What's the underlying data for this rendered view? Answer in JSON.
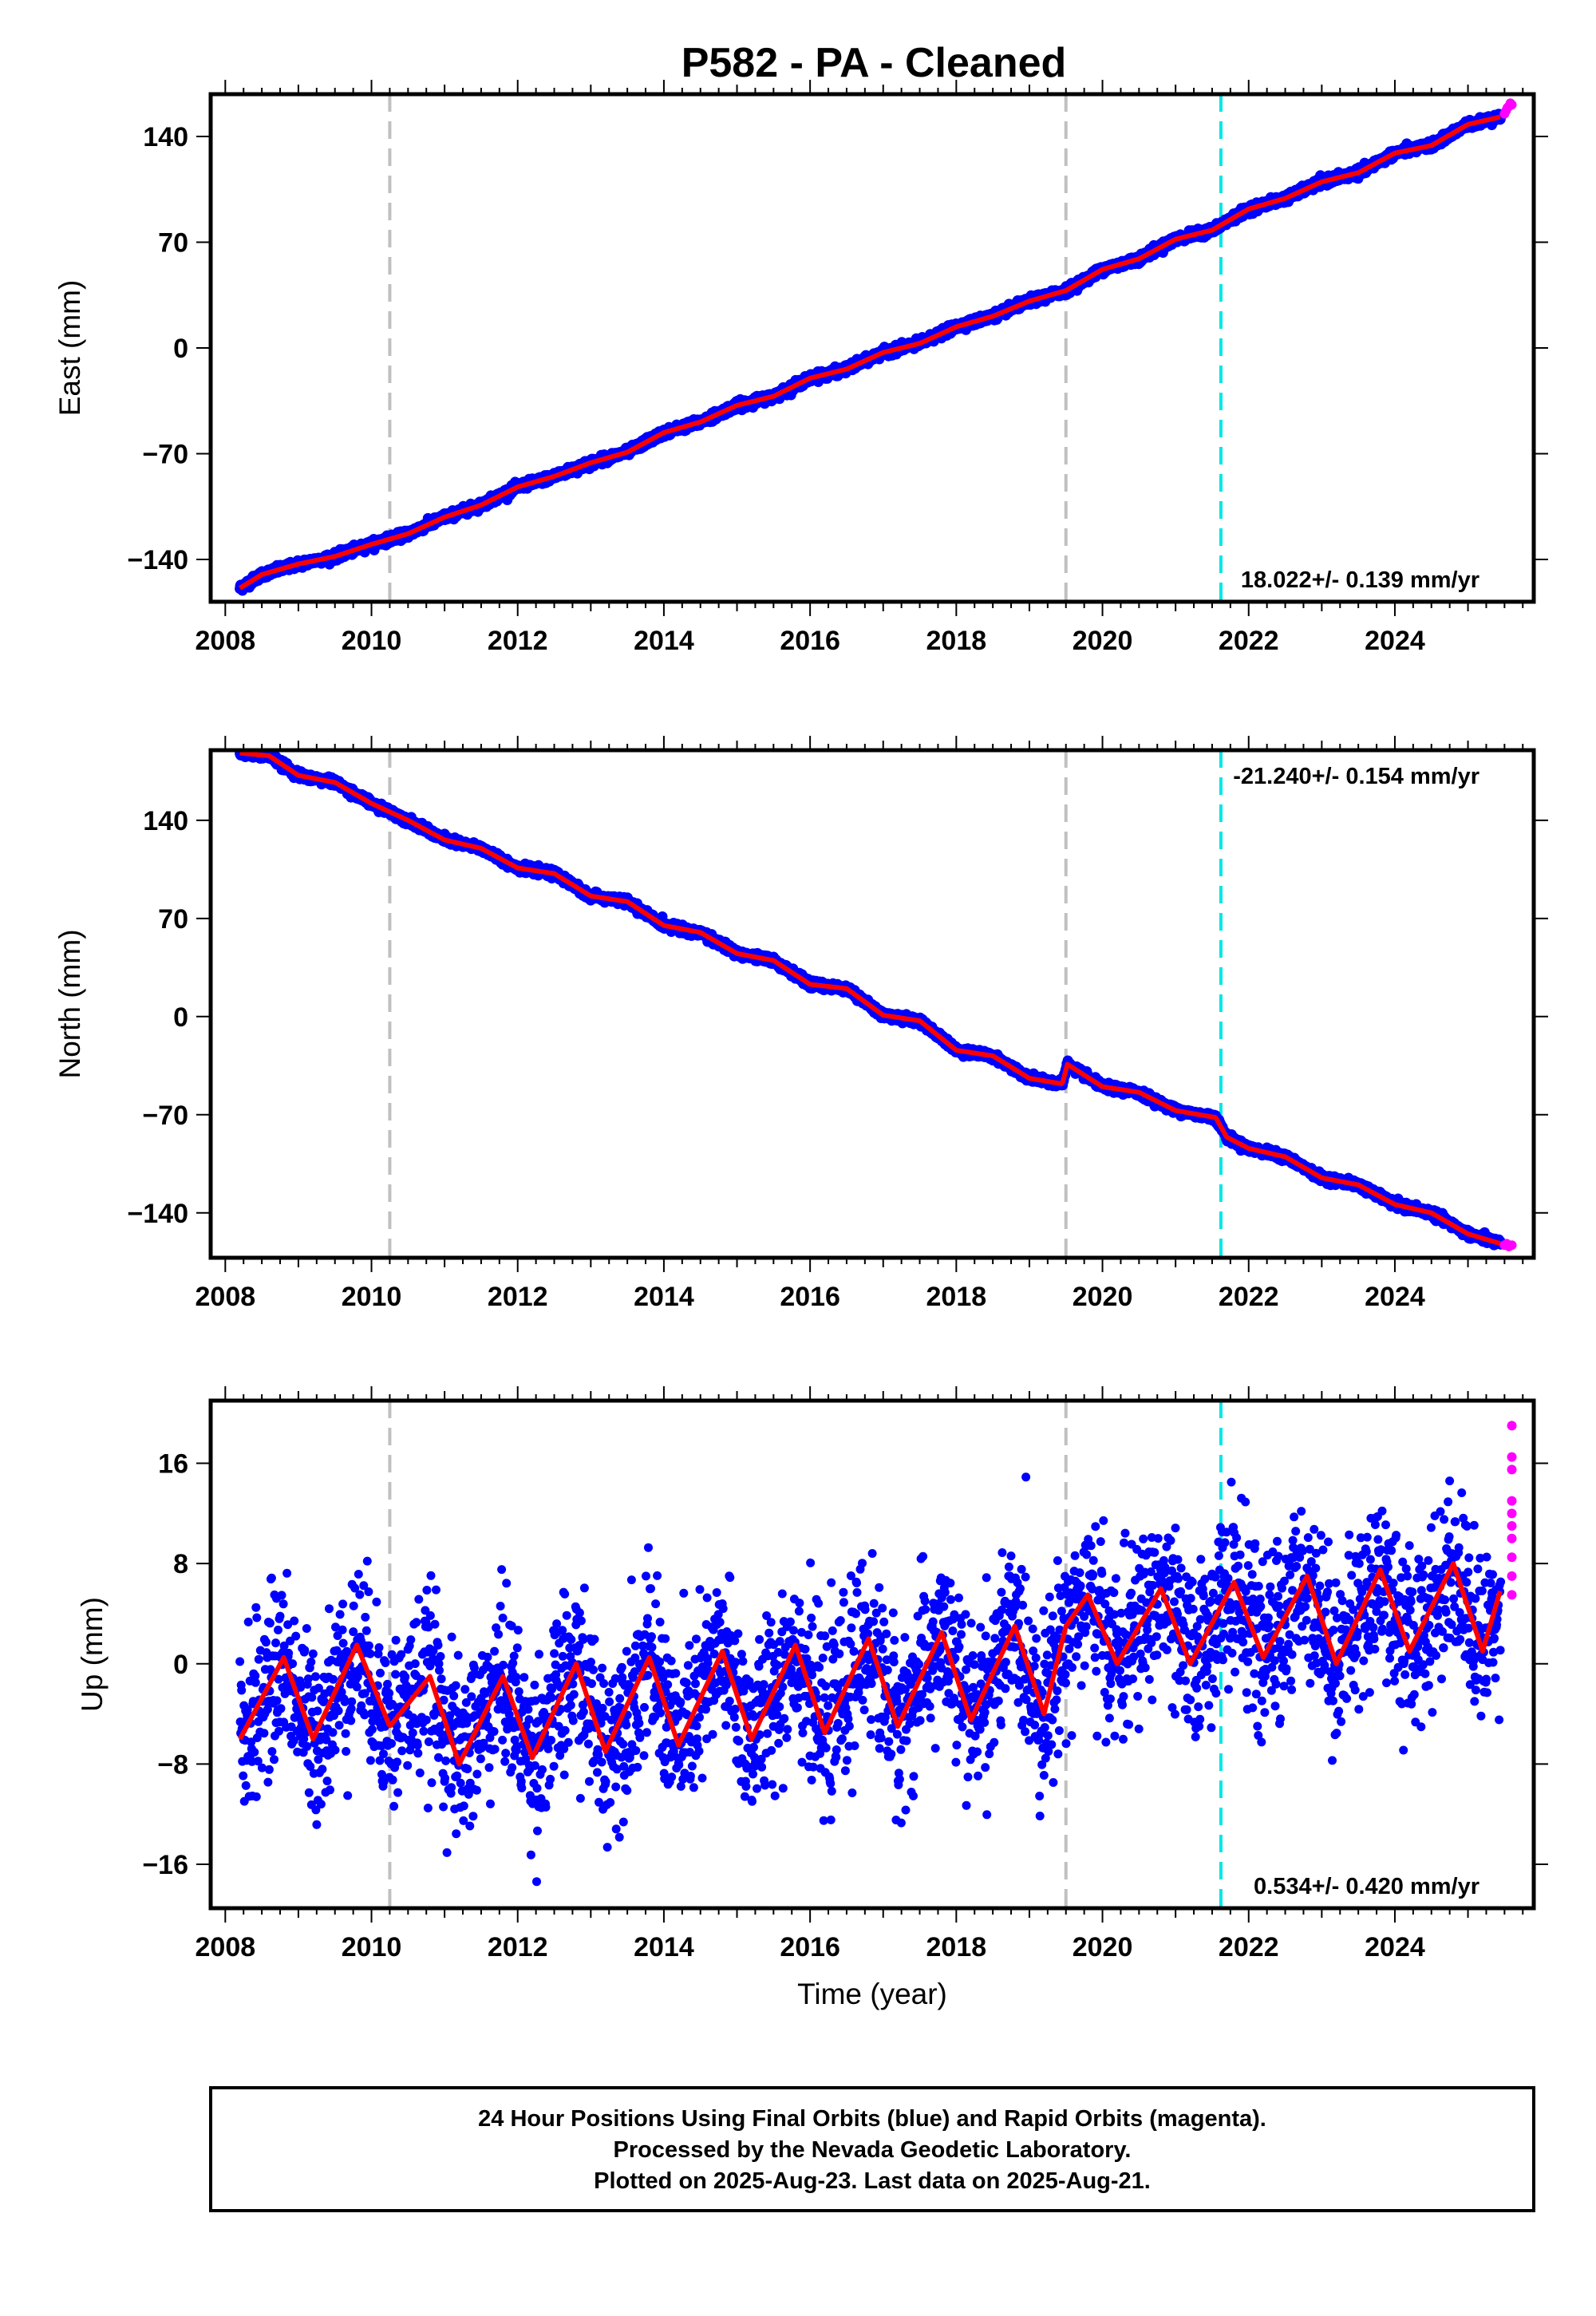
{
  "title": "P582  - PA - Cleaned",
  "colors": {
    "final": "#0000ff",
    "rapid": "#ff00ff",
    "model": "#ff0000",
    "event_gray": "#c0c0c0",
    "event_cyan": "#00e6e6"
  },
  "footer": {
    "line1": "24 Hour Positions Using Final Orbits (blue) and Rapid Orbits (magenta).",
    "line2": "Processed by the Nevada Geodetic Laboratory.",
    "line3": "Plotted on 2025-Aug-23. Last data on 2025-Aug-21."
  },
  "chart_data": [
    {
      "type": "scatter",
      "ylabel": "East (mm)",
      "xlabel": "",
      "xlim": [
        2007.8,
        2025.9
      ],
      "ylim": [
        -168,
        168
      ],
      "yticks": [
        -140,
        -70,
        0,
        70,
        140
      ],
      "xticks": [
        2008,
        2010,
        2012,
        2014,
        2016,
        2018,
        2020,
        2022,
        2024
      ],
      "rate_label": "18.022+/- 0.139 mm/yr",
      "rate_position": "bottom-right",
      "event_lines": [
        {
          "x": 2010.25,
          "color": "gray"
        },
        {
          "x": 2019.5,
          "color": "gray"
        },
        {
          "x": 2021.62,
          "color": "cyan"
        }
      ],
      "series": [
        {
          "role": "final",
          "x": [
            2008.2,
            2008.5,
            2009.0,
            2009.5,
            2010.0,
            2010.5,
            2011.0,
            2011.5,
            2012.0,
            2012.5,
            2013.0,
            2013.5,
            2014.0,
            2014.5,
            2015.0,
            2015.5,
            2016.0,
            2016.5,
            2017.0,
            2017.5,
            2018.0,
            2018.5,
            2019.0,
            2019.5,
            2020.0,
            2020.5,
            2021.0,
            2021.5,
            2022.0,
            2022.5,
            2023.0,
            2023.5,
            2024.0,
            2024.5,
            2025.0,
            2025.45
          ],
          "y": [
            -159,
            -150,
            -143,
            -138,
            -130,
            -123,
            -112,
            -104,
            -92,
            -85,
            -76,
            -69,
            -56,
            -49,
            -38,
            -32,
            -20,
            -14,
            -3,
            3,
            14,
            21,
            31,
            38,
            52,
            59,
            72,
            78,
            92,
            99,
            110,
            116,
            129,
            134,
            148,
            153
          ]
        },
        {
          "role": "rapid",
          "x": [
            2025.5,
            2025.52,
            2025.54,
            2025.56,
            2025.58,
            2025.6
          ],
          "y": [
            155,
            157,
            159,
            160,
            162,
            161
          ]
        }
      ]
    },
    {
      "type": "scatter",
      "ylabel": "North (mm)",
      "xlabel": "",
      "xlim": [
        2007.8,
        2025.9
      ],
      "ylim": [
        -172,
        190
      ],
      "yticks": [
        -140,
        -70,
        0,
        70,
        140
      ],
      "xticks": [
        2008,
        2010,
        2012,
        2014,
        2016,
        2018,
        2020,
        2022,
        2024
      ],
      "rate_label": "-21.240+/- 0.154 mm/yr",
      "rate_position": "top-right",
      "event_lines": [
        {
          "x": 2010.25,
          "color": "gray"
        },
        {
          "x": 2019.5,
          "color": "gray"
        },
        {
          "x": 2021.62,
          "color": "cyan"
        }
      ],
      "series": [
        {
          "role": "final",
          "x": [
            2008.2,
            2008.6,
            2009.0,
            2009.5,
            2010.0,
            2010.5,
            2011.0,
            2011.5,
            2012.0,
            2012.5,
            2013.0,
            2013.5,
            2014.0,
            2014.5,
            2015.0,
            2015.5,
            2016.0,
            2016.5,
            2017.0,
            2017.5,
            2018.0,
            2018.5,
            2019.0,
            2019.45,
            2019.52,
            2020.0,
            2020.5,
            2021.0,
            2021.55,
            2021.7,
            2022.0,
            2022.5,
            2023.0,
            2023.5,
            2024.0,
            2024.5,
            2025.0,
            2025.45
          ],
          "y": [
            188,
            186,
            172,
            167,
            152,
            140,
            126,
            120,
            106,
            102,
            86,
            82,
            65,
            60,
            45,
            40,
            23,
            20,
            1,
            -3,
            -24,
            -28,
            -44,
            -48,
            -34,
            -50,
            -54,
            -67,
            -72,
            -86,
            -94,
            -100,
            -115,
            -120,
            -134,
            -140,
            -155,
            -162
          ]
        },
        {
          "role": "rapid",
          "x": [
            2025.5,
            2025.53,
            2025.56,
            2025.6
          ],
          "y": [
            -163,
            -162,
            -164,
            -163
          ]
        }
      ]
    },
    {
      "type": "scatter",
      "ylabel": "Up (mm)",
      "xlabel": "Time (year)",
      "xlim": [
        2007.8,
        2025.9
      ],
      "ylim": [
        -19.5,
        21
      ],
      "yticks": [
        -16,
        -8,
        0,
        8,
        16
      ],
      "xticks": [
        2008,
        2010,
        2012,
        2014,
        2016,
        2018,
        2020,
        2022,
        2024
      ],
      "rate_label": "0.534+/- 0.420 mm/yr",
      "rate_position": "bottom-right",
      "event_lines": [
        {
          "x": 2010.25,
          "color": "gray"
        },
        {
          "x": 2019.5,
          "color": "gray"
        },
        {
          "x": 2021.62,
          "color": "cyan"
        }
      ],
      "series": [
        {
          "role": "final",
          "x": [
            2008.2,
            2008.8,
            2009.2,
            2009.8,
            2010.25,
            2010.8,
            2011.2,
            2011.8,
            2012.2,
            2012.8,
            2013.2,
            2013.8,
            2014.2,
            2014.8,
            2015.2,
            2015.8,
            2016.2,
            2016.8,
            2017.2,
            2017.8,
            2018.2,
            2018.8,
            2019.2,
            2019.5,
            2019.8,
            2020.2,
            2020.8,
            2021.2,
            2021.8,
            2022.2,
            2022.8,
            2023.2,
            2023.8,
            2024.2,
            2024.8,
            2025.2,
            2025.45
          ],
          "y": [
            -6,
            0.5,
            -6,
            1.5,
            -5,
            -1,
            -8,
            -1,
            -7.5,
            0,
            -7,
            0.5,
            -6.5,
            1,
            -6,
            1.5,
            -5.5,
            2,
            -5,
            2.5,
            -4.5,
            3,
            -4,
            3,
            5.5,
            0,
            6,
            0,
            6.5,
            0.5,
            7,
            0,
            7.5,
            1,
            8,
            1,
            6
          ]
        },
        {
          "role": "rapid",
          "x": [
            2025.6,
            2025.6,
            2025.6,
            2025.6,
            2025.6,
            2025.6,
            2025.6,
            2025.6,
            2025.6,
            2025.6
          ],
          "y": [
            19,
            16.5,
            15.5,
            13,
            12,
            11,
            10,
            8.5,
            7,
            5.5
          ]
        }
      ]
    }
  ]
}
